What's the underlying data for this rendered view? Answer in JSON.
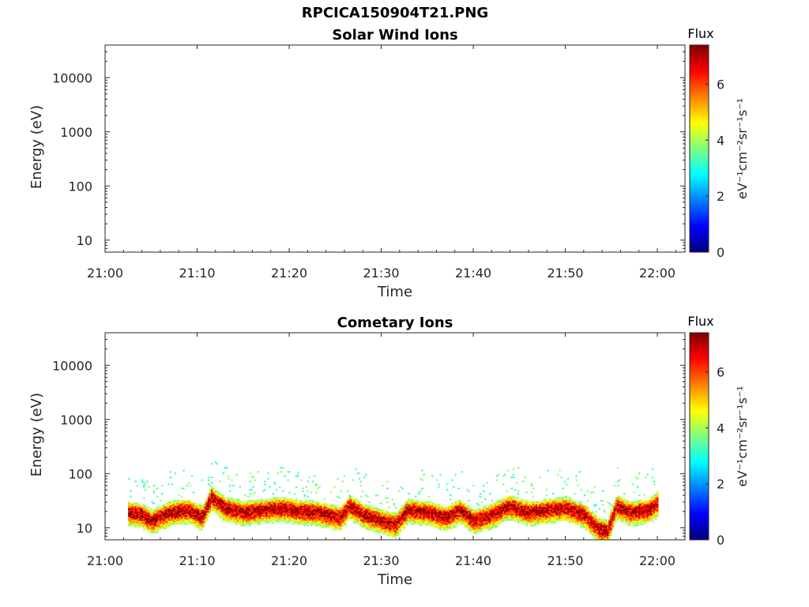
{
  "figure": {
    "title": "RPCICA150904T21.PNG"
  },
  "colormap": [
    "#00007f",
    "#0000ff",
    "#007fff",
    "#00ffff",
    "#7fff7f",
    "#ffff00",
    "#ff7f00",
    "#ff0000",
    "#7f0000"
  ],
  "chart_data": [
    {
      "type": "heatmap",
      "title": "Solar Wind Ions",
      "xlabel": "Time",
      "ylabel": "Energy (eV)",
      "x_ticks": [
        "21:00",
        "21:10",
        "21:20",
        "21:30",
        "21:40",
        "21:50",
        "22:00"
      ],
      "x_range_minutes": [
        0,
        63
      ],
      "y_scale": "log",
      "y_ticks": [
        "10",
        "100",
        "1000",
        "10000"
      ],
      "y_range": [
        6,
        40000
      ],
      "colorbar": {
        "title": "Flux",
        "label": "eV⁻¹cm⁻²sr⁻¹s⁻¹",
        "ticks": [
          "0",
          "2",
          "4",
          "6"
        ],
        "range": [
          0,
          7.4
        ]
      },
      "data": []
    },
    {
      "type": "heatmap",
      "title": "Cometary Ions",
      "xlabel": "Time",
      "ylabel": "Energy (eV)",
      "x_ticks": [
        "21:00",
        "21:10",
        "21:20",
        "21:30",
        "21:40",
        "21:50",
        "22:00"
      ],
      "x_range_minutes": [
        0,
        63
      ],
      "y_scale": "log",
      "y_ticks": [
        "10",
        "100",
        "1000",
        "10000"
      ],
      "y_range": [
        6,
        40000
      ],
      "colorbar": {
        "title": "Flux",
        "label": "eV⁻¹cm⁻²sr⁻¹s⁻¹",
        "ticks": [
          "0",
          "2",
          "4",
          "6"
        ],
        "range": [
          0,
          7.4
        ]
      },
      "data_extent_minutes": [
        2.5,
        60
      ],
      "peak_energy_profile": [
        {
          "t": 2.5,
          "e": 20
        },
        {
          "t": 4,
          "e": 18
        },
        {
          "t": 5,
          "e": 14
        },
        {
          "t": 7,
          "e": 20
        },
        {
          "t": 9,
          "e": 22
        },
        {
          "t": 10.5,
          "e": 16
        },
        {
          "t": 11.5,
          "e": 38
        },
        {
          "t": 13,
          "e": 24
        },
        {
          "t": 15,
          "e": 20
        },
        {
          "t": 17,
          "e": 22
        },
        {
          "t": 19,
          "e": 24
        },
        {
          "t": 21,
          "e": 21
        },
        {
          "t": 23,
          "e": 20
        },
        {
          "t": 25.5,
          "e": 16
        },
        {
          "t": 26.5,
          "e": 26
        },
        {
          "t": 28,
          "e": 18
        },
        {
          "t": 30,
          "e": 14
        },
        {
          "t": 31.5,
          "e": 12
        },
        {
          "t": 32.8,
          "e": 22
        },
        {
          "t": 35,
          "e": 20
        },
        {
          "t": 37,
          "e": 16
        },
        {
          "t": 38.5,
          "e": 22
        },
        {
          "t": 40,
          "e": 14
        },
        {
          "t": 42,
          "e": 18
        },
        {
          "t": 43.8,
          "e": 26
        },
        {
          "t": 46,
          "e": 20
        },
        {
          "t": 48,
          "e": 22
        },
        {
          "t": 50,
          "e": 24
        },
        {
          "t": 52,
          "e": 18
        },
        {
          "t": 53.5,
          "e": 10
        },
        {
          "t": 54.5,
          "e": 9
        },
        {
          "t": 55.5,
          "e": 26
        },
        {
          "t": 57,
          "e": 20
        },
        {
          "t": 59,
          "e": 22
        },
        {
          "t": 60,
          "e": 30
        }
      ],
      "peak_flux": 7.0
    }
  ]
}
